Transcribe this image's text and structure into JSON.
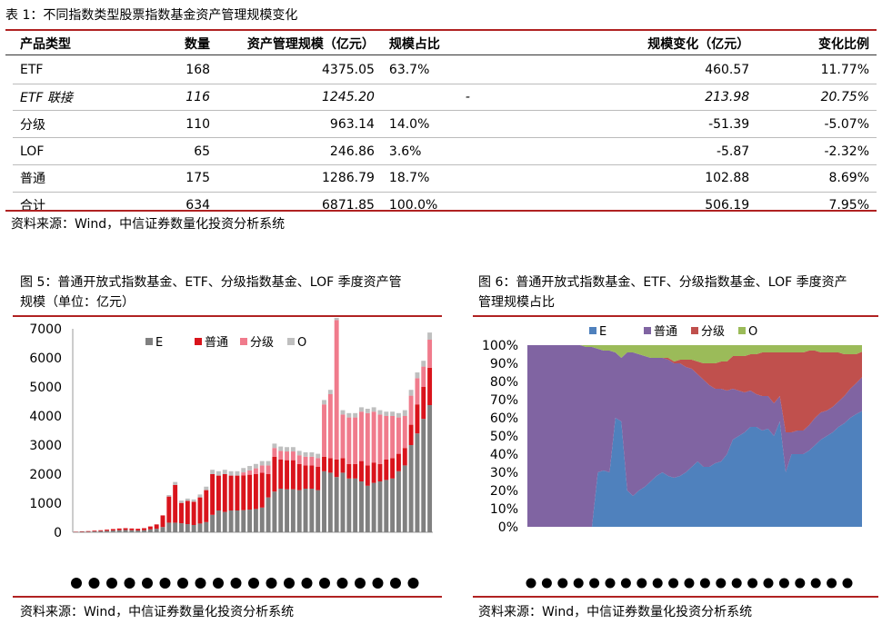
{
  "table": {
    "title": "表 1：不同指数类型股票指数基金资产管理规模变化",
    "headers": [
      "产品类型",
      "数量",
      "资产管理规模（亿元）",
      "规模占比",
      "规模变化（亿元）",
      "变化比例"
    ],
    "rows": [
      {
        "type": "ETF",
        "count": "168",
        "aum": "4375.05",
        "share": "63.7%",
        "change": "460.57",
        "ratio": "11.77%"
      },
      {
        "type": "ETF 联接",
        "count": "116",
        "aum": "1245.20",
        "share": "-",
        "change": "213.98",
        "ratio": "20.75%"
      },
      {
        "type": "分级",
        "count": "110",
        "aum": "963.14",
        "share": "14.0%",
        "change": "-51.39",
        "ratio": "-5.07%"
      },
      {
        "type": "LOF",
        "count": "65",
        "aum": "246.86",
        "share": "3.6%",
        "change": "-5.87",
        "ratio": "-2.32%"
      },
      {
        "type": "普通",
        "count": "175",
        "aum": "1286.79",
        "share": "18.7%",
        "change": "102.88",
        "ratio": "8.69%"
      },
      {
        "type": "合计",
        "count": "634",
        "aum": "6871.85",
        "share": "100.0%",
        "change": "506.19",
        "ratio": "7.95%"
      }
    ],
    "source": "资料来源：Wind，中信证券数量化投资分析系统"
  },
  "fig5": {
    "title_line1": "图 5：普通开放式指数基金、ETF、分级指数基金、LOF 季度资产管",
    "title_line2": "规模（单位：亿元）",
    "source": "资料来源：Wind，中信证券数量化投资分析系统"
  },
  "fig6": {
    "title_line1": "图 6：普通开放式指数基金、ETF、分级指数基金、LOF 季度资产",
    "title_line2": "管理规模占比",
    "source": "资料来源：Wind，中信证券数量化投资分析系统"
  },
  "colors": {
    "rule": "#b02222",
    "gray": "#808080",
    "red": "#d9141c",
    "pink": "#f07b8c",
    "lightgray": "#bfbfbf",
    "blue": "#4f81bd",
    "purple": "#8064a2",
    "darkred": "#c0504d",
    "green": "#9bbb59"
  },
  "chart_data": [
    {
      "type": "bar",
      "stacked": true,
      "legend_position": "top",
      "ylim": [
        0,
        7000
      ],
      "yticks": [
        "0",
        "1000",
        "2000",
        "3000",
        "4000",
        "5000",
        "6000",
        "7000"
      ],
      "legend": [
        "E",
        "普通",
        "分级",
        "O"
      ],
      "series": [
        {
          "name": "E",
          "color": "#808080",
          "values": [
            10,
            15,
            20,
            30,
            40,
            50,
            60,
            70,
            80,
            70,
            60,
            70,
            100,
            120,
            180,
            330,
            330,
            310,
            280,
            250,
            300,
            350,
            600,
            750,
            700,
            750,
            750,
            760,
            780,
            800,
            850,
            1200,
            1400,
            1500,
            1480,
            1480,
            1450,
            1500,
            1500,
            1450,
            2100,
            2050,
            1900,
            2050,
            1850,
            1850,
            1750,
            1600,
            1700,
            1750,
            1800,
            1850,
            2100,
            2300,
            3000,
            3400,
            3900,
            4375
          ]
        },
        {
          "name": "普通",
          "color": "#d9141c",
          "values": [
            10,
            15,
            20,
            25,
            30,
            40,
            50,
            60,
            60,
            60,
            60,
            70,
            100,
            150,
            400,
            900,
            1300,
            700,
            800,
            800,
            900,
            1100,
            1400,
            1200,
            1300,
            1200,
            1200,
            1200,
            1200,
            1200,
            1200,
            800,
            1200,
            1000,
            1000,
            1000,
            900,
            800,
            800,
            800,
            500,
            500,
            600,
            500,
            500,
            500,
            700,
            700,
            700,
            600,
            700,
            700,
            600,
            600,
            700,
            1000,
            1100,
            1287
          ]
        },
        {
          "name": "分级",
          "color": "#f07b8c",
          "values": [
            0,
            0,
            0,
            0,
            0,
            0,
            0,
            0,
            0,
            0,
            0,
            0,
            0,
            0,
            0,
            0,
            0,
            0,
            0,
            0,
            0,
            0,
            0,
            0,
            0,
            0,
            0,
            100,
            150,
            200,
            250,
            300,
            300,
            300,
            300,
            300,
            300,
            300,
            300,
            300,
            1800,
            2200,
            4800,
            1500,
            1600,
            1600,
            1700,
            1800,
            1750,
            1700,
            1500,
            1450,
            1250,
            1100,
            1000,
            900,
            700,
            963
          ]
        },
        {
          "name": "O",
          "color": "#bfbfbf",
          "values": [
            0,
            0,
            0,
            0,
            0,
            0,
            0,
            0,
            0,
            0,
            0,
            0,
            0,
            0,
            0,
            50,
            100,
            80,
            80,
            80,
            100,
            120,
            150,
            150,
            150,
            150,
            150,
            150,
            150,
            150,
            150,
            150,
            150,
            150,
            150,
            150,
            150,
            150,
            150,
            150,
            150,
            150,
            150,
            150,
            150,
            150,
            150,
            150,
            150,
            150,
            150,
            150,
            150,
            200,
            200,
            200,
            200,
            247
          ]
        }
      ]
    },
    {
      "type": "area",
      "stacked": true,
      "percent": true,
      "legend_position": "top",
      "ylim": [
        0,
        100
      ],
      "yticks": [
        "0%",
        "10%",
        "20%",
        "30%",
        "40%",
        "50%",
        "60%",
        "70%",
        "80%",
        "90%",
        "100%"
      ],
      "legend": [
        "E",
        "普通",
        "分级",
        "O"
      ],
      "series": [
        {
          "name": "E",
          "color": "#4f81bd",
          "values": [
            0,
            0,
            0,
            0,
            0,
            0,
            0,
            0,
            0,
            0,
            0,
            0,
            30,
            31,
            30,
            60,
            58,
            20,
            17,
            20,
            22,
            25,
            28,
            30,
            28,
            27,
            28,
            30,
            33,
            36,
            33,
            33,
            35,
            36,
            40,
            48,
            50,
            52,
            55,
            55,
            53,
            54,
            50,
            58,
            30,
            40,
            40,
            40,
            42,
            45,
            48,
            50,
            52,
            55,
            57,
            60,
            62,
            63.7
          ]
        },
        {
          "name": "普通",
          "color": "#8064a2",
          "values": [
            100,
            100,
            100,
            100,
            100,
            100,
            100,
            100,
            100,
            100,
            99,
            99,
            68,
            66,
            67,
            36,
            35,
            76,
            79,
            75,
            72,
            68,
            65,
            63,
            64,
            63,
            62,
            58,
            54,
            48,
            48,
            45,
            41,
            40,
            35,
            28,
            25,
            22,
            20,
            18,
            19,
            18,
            18,
            14,
            22,
            12,
            13,
            13,
            14,
            15,
            15,
            14,
            14,
            14,
            15,
            16,
            17,
            18.7
          ]
        },
        {
          "name": "分级",
          "color": "#c0504d",
          "values": [
            0,
            0,
            0,
            0,
            0,
            0,
            0,
            0,
            0,
            0,
            0,
            0,
            0,
            0,
            0,
            0,
            0,
            0,
            0,
            0,
            0,
            0,
            0,
            0,
            1,
            1,
            2,
            4,
            5,
            7,
            9,
            12,
            14,
            15,
            16,
            18,
            19,
            20,
            20,
            22,
            24,
            24,
            28,
            24,
            44,
            44,
            43,
            43,
            41,
            37,
            33,
            32,
            30,
            27,
            23,
            19,
            16,
            14.0
          ]
        },
        {
          "name": "O",
          "color": "#9bbb59",
          "values": [
            0,
            0,
            0,
            0,
            0,
            0,
            0,
            0,
            0,
            0,
            1,
            1,
            2,
            3,
            3,
            4,
            7,
            4,
            4,
            5,
            6,
            7,
            7,
            7,
            7,
            9,
            8,
            8,
            8,
            9,
            10,
            10,
            10,
            9,
            9,
            6,
            6,
            6,
            5,
            5,
            4,
            4,
            4,
            4,
            4,
            4,
            4,
            4,
            3,
            3,
            4,
            4,
            4,
            4,
            5,
            5,
            5,
            3.6
          ]
        }
      ]
    }
  ]
}
